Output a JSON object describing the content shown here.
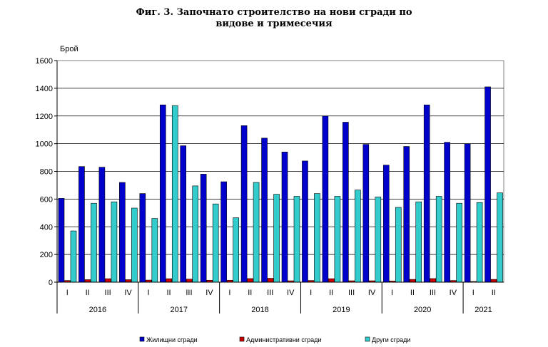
{
  "chart_data": {
    "type": "bar",
    "title_line1": "Фиг. 3. Започнато строителство на нови сгради по",
    "title_line2": "видове и тримесечия",
    "ylabel": "Брой",
    "ylim": [
      0,
      1600
    ],
    "yticks": [
      0,
      200,
      400,
      600,
      800,
      1000,
      1200,
      1400,
      1600
    ],
    "grid": true,
    "legend_position": "bottom",
    "categories": [
      "I",
      "II",
      "III",
      "IV",
      "I",
      "II",
      "III",
      "IV",
      "I",
      "II",
      "III",
      "IV",
      "I",
      "II",
      "III",
      "IV",
      "I",
      "II",
      "III",
      "IV",
      "I",
      "II"
    ],
    "years": [
      {
        "label": "2016",
        "start": 0,
        "end": 3
      },
      {
        "label": "2017",
        "start": 4,
        "end": 7
      },
      {
        "label": "2018",
        "start": 8,
        "end": 11
      },
      {
        "label": "2019",
        "start": 12,
        "end": 15
      },
      {
        "label": "2020",
        "start": 16,
        "end": 19
      },
      {
        "label": "2021",
        "start": 20,
        "end": 21
      }
    ],
    "series": [
      {
        "name": "Жилищни сгради",
        "color": "#0000cc",
        "values": [
          605,
          835,
          830,
          720,
          640,
          1280,
          985,
          780,
          725,
          1130,
          1040,
          940,
          875,
          1200,
          1155,
          995,
          845,
          980,
          1280,
          1010,
          1000,
          1410
        ]
      },
      {
        "name": "Административни сгради",
        "color": "#cc0000",
        "values": [
          12,
          18,
          25,
          18,
          15,
          25,
          22,
          14,
          14,
          26,
          28,
          10,
          12,
          25,
          10,
          10,
          8,
          20,
          26,
          12,
          5,
          20
        ]
      },
      {
        "name": "Други сгради",
        "color": "#33cccc",
        "values": [
          370,
          570,
          580,
          535,
          460,
          1275,
          695,
          565,
          465,
          720,
          635,
          620,
          640,
          620,
          665,
          615,
          540,
          580,
          620,
          570,
          575,
          645
        ]
      }
    ]
  }
}
